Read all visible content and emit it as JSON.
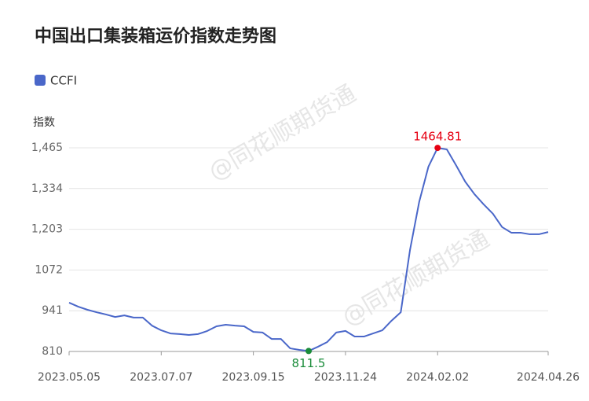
{
  "chart_data": {
    "type": "line",
    "title": "中国出口集装箱运价指数走势图",
    "y_label": "指数",
    "watermark": "@同花顺期货通",
    "categories": [
      "2023.05.05",
      null,
      null,
      null,
      null,
      null,
      null,
      null,
      null,
      null,
      "2023.07.07",
      null,
      null,
      null,
      null,
      null,
      null,
      null,
      null,
      null,
      "2023.09.15",
      null,
      null,
      null,
      null,
      null,
      null,
      null,
      null,
      null,
      "2023.11.24",
      null,
      null,
      null,
      null,
      null,
      null,
      null,
      null,
      null,
      "2024.02.02",
      null,
      null,
      null,
      null,
      null,
      null,
      null,
      null,
      null,
      null,
      null,
      "2024.04.26"
    ],
    "series": [
      {
        "name": "CCFI",
        "color": "#4a67c9",
        "values": [
          967,
          954,
          944,
          936,
          929,
          921,
          926,
          919,
          919,
          893,
          878,
          868,
          866,
          863,
          866,
          876,
          891,
          896,
          893,
          891,
          873,
          871,
          850,
          850,
          820,
          815,
          811.5,
          825,
          840,
          871,
          876,
          858,
          858,
          868,
          878,
          909,
          936,
          1136,
          1291,
          1404,
          1464.81,
          1460,
          1409,
          1356,
          1316,
          1283,
          1253,
          1210,
          1192,
          1192,
          1187,
          1187,
          1194
        ]
      }
    ],
    "ylim": [
      810,
      1465
    ],
    "yticks": [
      810,
      941,
      1072,
      {
        "value": 1203,
        "label": "1,203"
      },
      {
        "value": 1334,
        "label": "1,334"
      },
      {
        "value": 1465,
        "label": "1,465"
      }
    ],
    "grid": true,
    "legend": "top-left",
    "max_color": "#e60012",
    "min_color": "#1a8c3a"
  }
}
